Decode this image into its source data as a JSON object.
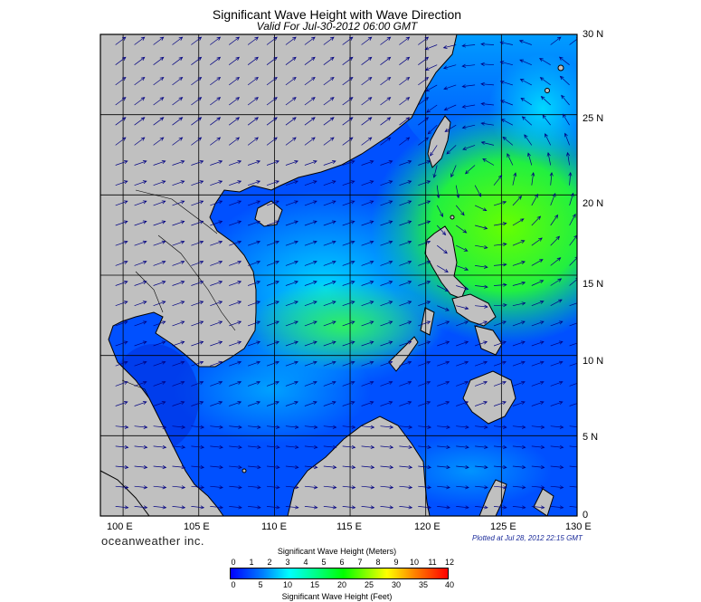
{
  "header": {
    "title": "Significant Wave Height with Wave Direction",
    "subtitle": "Valid For Jul-30-2012 06:00 GMT"
  },
  "map": {
    "lon_range": [
      98.5,
      130
    ],
    "lat_range": [
      0,
      30
    ],
    "x_ticks": [
      "100 E",
      "105 E",
      "110 E",
      "115 E",
      "120 E",
      "125 E",
      "130 E"
    ],
    "y_ticks": [
      "0",
      "5 N",
      "10 N",
      "15 N",
      "20 N",
      "25 N",
      "30 N"
    ],
    "land_color": "#c0c0c0",
    "coast_color": "#000000",
    "grid_color": "#000000",
    "arrow_color": "#000080"
  },
  "footer": {
    "brand": "oceanweather inc.",
    "plotted": "Plotted at Jul 28, 2012 22:15 GMT"
  },
  "colorbar": {
    "title_meters": "Significant Wave Height (Meters)",
    "title_feet": "Significant Wave Height (Feet)",
    "meters": [
      "0",
      "1",
      "2",
      "3",
      "4",
      "5",
      "6",
      "7",
      "8",
      "9",
      "10",
      "11",
      "12"
    ],
    "feet": [
      "0",
      "5",
      "10",
      "15",
      "20",
      "25",
      "30",
      "35",
      "40"
    ]
  }
}
